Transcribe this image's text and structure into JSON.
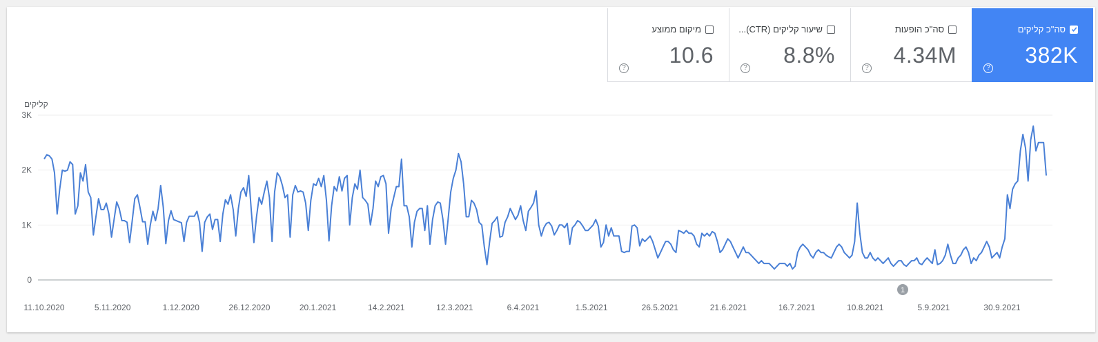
{
  "metrics": [
    {
      "label": "סה\"כ קליקים",
      "value": "382K",
      "active": true
    },
    {
      "label": "סה\"כ הופעות",
      "value": "4.34M",
      "active": false
    },
    {
      "label": "שיעור קליקים (CTR)...",
      "value": "8.8%",
      "active": false
    },
    {
      "label": "מיקום ממוצע",
      "value": "10.6",
      "active": false
    }
  ],
  "annotation_badge": "1",
  "colors": {
    "accent": "#4285f4",
    "line": "#4a80d6"
  },
  "chart_data": {
    "type": "line",
    "ylabel": "קליקים",
    "ylim": [
      0,
      3000
    ],
    "yticks": [
      "0",
      "1K",
      "2K",
      "3K"
    ],
    "ytick_values": [
      0,
      1000,
      2000,
      3000
    ],
    "xticks": [
      "11.10.2020",
      "5.11.2020",
      "1.12.2020",
      "26.12.2020",
      "20.1.2021",
      "14.2.2021",
      "12.3.2021",
      "6.4.2021",
      "1.5.2021",
      "26.5.2021",
      "21.6.2021",
      "16.7.2021",
      "10.8.2021",
      "5.9.2021",
      "30.9.2021"
    ],
    "grid": true,
    "legend": "none",
    "series": [
      {
        "values": [
          2200,
          2280,
          2260,
          2200,
          1950,
          1200,
          1650,
          2000,
          1980,
          2000,
          2150,
          2100,
          1200,
          1350,
          1950,
          1800,
          2100,
          1600,
          1500,
          820,
          1150,
          1480,
          1280,
          1280,
          1400,
          1200,
          780,
          1100,
          1420,
          1300,
          1080,
          1080,
          1050,
          680,
          1080,
          1480,
          1550,
          1320,
          1060,
          1060,
          650,
          1000,
          1250,
          1080,
          1300,
          1720,
          1320,
          660,
          1080,
          1260,
          1100,
          1080,
          1060,
          1040,
          700,
          1050,
          1160,
          1160,
          1160,
          1250,
          1050,
          520,
          1050,
          1150,
          1200,
          920,
          1100,
          1100,
          700,
          1200,
          1460,
          1380,
          1550,
          1280,
          800,
          1300,
          1600,
          1680,
          1520,
          1900,
          1250,
          680,
          1150,
          1500,
          1380,
          1600,
          1800,
          1500,
          700,
          1600,
          1950,
          1880,
          1720,
          1500,
          1550,
          780,
          1550,
          1720,
          1600,
          1620,
          1600,
          1400,
          900,
          1450,
          1750,
          1720,
          1850,
          1700,
          1900,
          1450,
          710,
          1350,
          1700,
          1620,
          1880,
          1620,
          1850,
          1900,
          1000,
          1500,
          1750,
          1650,
          2000,
          1500,
          1450,
          1380,
          1000,
          1300,
          1800,
          1700,
          1880,
          1900,
          1750,
          850,
          1300,
          1500,
          1700,
          1700,
          2200,
          1350,
          1350,
          1150,
          600,
          1050,
          1250,
          1300,
          1300,
          900,
          1350,
          650,
          1100,
          1350,
          1420,
          1400,
          1100,
          650,
          1100,
          1600,
          1850,
          2000,
          2300,
          2150,
          1750,
          1150,
          1150,
          1450,
          1400,
          1280,
          1050,
          1000,
          600,
          280,
          680,
          1030,
          1080,
          1150,
          780,
          800,
          1050,
          1150,
          1300,
          1200,
          1100,
          1180,
          1350,
          1080,
          900,
          1250,
          1320,
          1400,
          1620,
          1000,
          800,
          950,
          1030,
          1050,
          980,
          820,
          900,
          1000,
          1000,
          950,
          1030,
          650,
          950,
          1000,
          1080,
          1050,
          980,
          900,
          900,
          950,
          1000,
          1100,
          980,
          600,
          680,
          1000,
          800,
          950,
          800,
          800,
          800,
          520,
          500,
          520,
          520,
          980,
          1000,
          950,
          620,
          750,
          700,
          750,
          800,
          700,
          550,
          400,
          500,
          600,
          700,
          700,
          650,
          550,
          500,
          900,
          880,
          850,
          900,
          850,
          850,
          800,
          650,
          600,
          850,
          800,
          850,
          800,
          880,
          850,
          700,
          500,
          550,
          650,
          750,
          700,
          600,
          500,
          400,
          500,
          600,
          500,
          500,
          450,
          400,
          350,
          300,
          350,
          300,
          300,
          300,
          250,
          200,
          250,
          300,
          300,
          300,
          250,
          300,
          200,
          250,
          500,
          600,
          650,
          600,
          550,
          450,
          400,
          500,
          550,
          500,
          500,
          450,
          420,
          400,
          500,
          600,
          650,
          600,
          500,
          450,
          400,
          450,
          700,
          1400,
          850,
          500,
          400,
          400,
          500,
          400,
          350,
          400,
          350,
          300,
          350,
          400,
          300,
          250,
          300,
          350,
          350,
          280,
          250,
          300,
          350,
          350,
          400,
          300,
          280,
          350,
          400,
          350,
          300,
          550,
          280,
          300,
          350,
          450,
          650,
          450,
          300,
          300,
          400,
          450,
          550,
          600,
          500,
          300,
          400,
          350,
          450,
          500,
          600,
          700,
          600,
          400,
          450,
          500,
          400,
          600,
          750,
          1550,
          1300,
          1650,
          1750,
          1800,
          2350,
          2650,
          2400,
          1800,
          2550,
          2800,
          2350,
          2500,
          2500,
          2500,
          1900
        ]
      }
    ],
    "annotation_badge": "1"
  }
}
